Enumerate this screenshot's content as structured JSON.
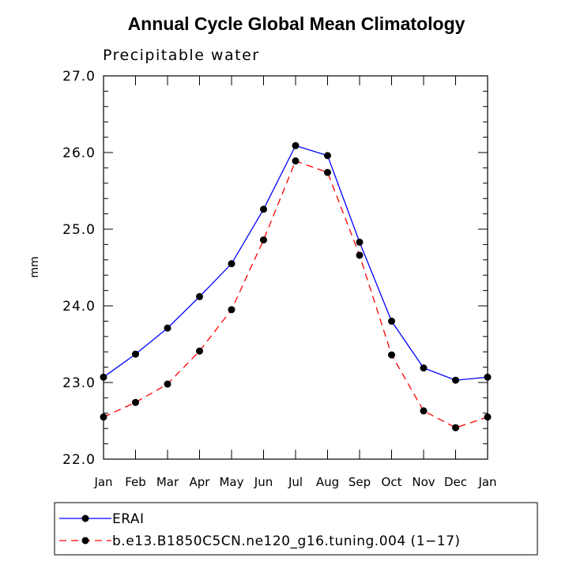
{
  "chart_data": {
    "type": "line",
    "title": "Annual Cycle Global Mean Climatology",
    "subtitle": "Precipitable water",
    "xlabel": "",
    "ylabel": "mm",
    "ylim": [
      22.0,
      27.0
    ],
    "yticks": [
      "22.0",
      "23.0",
      "24.0",
      "25.0",
      "26.0",
      "27.0"
    ],
    "categories": [
      "Jan",
      "Feb",
      "Mar",
      "Apr",
      "May",
      "Jun",
      "Jul",
      "Aug",
      "Sep",
      "Oct",
      "Nov",
      "Dec",
      "Jan"
    ],
    "grid": false,
    "legend_position": "bottom",
    "series": [
      {
        "name": "ERAI",
        "color": "#0000ff",
        "dash": "solid",
        "values": [
          23.07,
          23.37,
          23.71,
          24.12,
          24.55,
          25.26,
          26.09,
          25.96,
          24.83,
          23.8,
          23.19,
          23.03,
          23.07
        ]
      },
      {
        "name": "b.e13.B1850C5CN.ne120_g16.tuning.004 (1−17)",
        "color": "#ff0000",
        "dash": "dashed",
        "values": [
          22.55,
          22.74,
          22.98,
          23.41,
          23.95,
          24.86,
          25.89,
          25.74,
          24.66,
          23.36,
          22.63,
          22.41,
          22.55
        ]
      }
    ]
  }
}
